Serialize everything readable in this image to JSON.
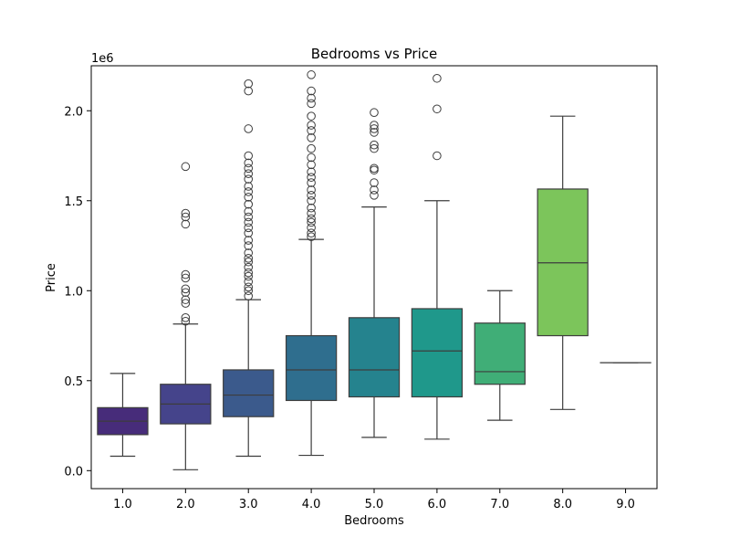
{
  "chart_data": {
    "type": "box",
    "title": "Bedrooms vs Price",
    "xlabel": "Bedrooms",
    "ylabel": "Price",
    "y_offset_label": "1e6",
    "ylim": [
      -0.1,
      2.25
    ],
    "yticks": [
      0.0,
      0.5,
      1.0,
      1.5,
      2.0
    ],
    "ytick_labels": [
      "0.0",
      "0.5",
      "1.0",
      "1.5",
      "2.0"
    ],
    "categories": [
      "1.0",
      "2.0",
      "3.0",
      "4.0",
      "5.0",
      "6.0",
      "7.0",
      "8.0",
      "9.0"
    ],
    "palette": "viridis",
    "colors": [
      "#472c7a",
      "#45448b",
      "#3b5a8c",
      "#2f6e8e",
      "#25838e",
      "#1f988b",
      "#40ae77",
      "#7cc55b",
      "#bcd83a"
    ],
    "boxes": [
      {
        "category": "1.0",
        "whisker_low": 0.08,
        "q1": 0.2,
        "median": 0.275,
        "q3": 0.35,
        "whisker_high": 0.54,
        "outliers": []
      },
      {
        "category": "2.0",
        "whisker_low": 0.005,
        "q1": 0.26,
        "median": 0.37,
        "q3": 0.48,
        "whisker_high": 0.815,
        "outliers": [
          0.83,
          0.85,
          0.93,
          0.95,
          0.99,
          1.01,
          1.07,
          1.09,
          1.37,
          1.41,
          1.43,
          1.69
        ]
      },
      {
        "category": "3.0",
        "whisker_low": 0.08,
        "q1": 0.3,
        "median": 0.42,
        "q3": 0.56,
        "whisker_high": 0.95,
        "outliers": [
          0.97,
          1.0,
          1.02,
          1.05,
          1.08,
          1.1,
          1.13,
          1.16,
          1.18,
          1.21,
          1.25,
          1.28,
          1.32,
          1.35,
          1.38,
          1.41,
          1.44,
          1.48,
          1.52,
          1.55,
          1.58,
          1.62,
          1.65,
          1.68,
          1.71,
          1.75,
          1.9,
          2.11,
          2.15
        ]
      },
      {
        "category": "4.0",
        "whisker_low": 0.085,
        "q1": 0.39,
        "median": 0.56,
        "q3": 0.75,
        "whisker_high": 1.285,
        "outliers": [
          1.3,
          1.32,
          1.35,
          1.38,
          1.4,
          1.43,
          1.46,
          1.5,
          1.53,
          1.56,
          1.6,
          1.63,
          1.66,
          1.7,
          1.74,
          1.79,
          1.85,
          1.89,
          1.92,
          1.97,
          2.04,
          2.07,
          2.11,
          2.2
        ]
      },
      {
        "category": "5.0",
        "whisker_low": 0.185,
        "q1": 0.41,
        "median": 0.56,
        "q3": 0.85,
        "whisker_high": 1.465,
        "outliers": [
          1.53,
          1.56,
          1.6,
          1.67,
          1.68,
          1.79,
          1.81,
          1.88,
          1.9,
          1.92,
          1.99
        ]
      },
      {
        "category": "6.0",
        "whisker_low": 0.175,
        "q1": 0.41,
        "median": 0.665,
        "q3": 0.9,
        "whisker_high": 1.5,
        "outliers": [
          1.75,
          2.01,
          2.18
        ]
      },
      {
        "category": "7.0",
        "whisker_low": 0.28,
        "q1": 0.48,
        "median": 0.55,
        "q3": 0.82,
        "whisker_high": 1.0,
        "outliers": []
      },
      {
        "category": "8.0",
        "whisker_low": 0.34,
        "q1": 0.75,
        "median": 1.155,
        "q3": 1.565,
        "whisker_high": 1.97,
        "outliers": []
      },
      {
        "category": "9.0",
        "whisker_low": 0.6,
        "q1": 0.6,
        "median": 0.6,
        "q3": 0.6,
        "whisker_high": 0.6,
        "outliers": []
      }
    ],
    "grid": false,
    "legend": "none"
  }
}
